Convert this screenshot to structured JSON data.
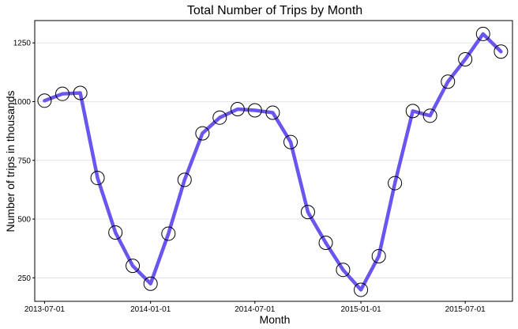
{
  "chart_data": {
    "type": "line",
    "title": "Total Number of Trips by Month",
    "xlabel": "Month",
    "ylabel": "Number of trips in thousands",
    "x": [
      "2013-07-01",
      "2013-08-01",
      "2013-09-01",
      "2013-10-01",
      "2013-11-01",
      "2013-12-01",
      "2014-01-01",
      "2014-02-01",
      "2014-03-01",
      "2014-04-01",
      "2014-05-01",
      "2014-06-01",
      "2014-07-01",
      "2014-08-01",
      "2014-09-01",
      "2014-10-01",
      "2014-11-01",
      "2014-12-01",
      "2015-01-01",
      "2015-02-01",
      "2015-03-01",
      "2015-04-01",
      "2015-05-01",
      "2015-06-01",
      "2015-07-01",
      "2015-08-01",
      "2015-09-01"
    ],
    "series": [
      {
        "values": [
          1004,
          1033,
          1037,
          675,
          443,
          301,
          225,
          438,
          667,
          865,
          932,
          968,
          963,
          953,
          828,
          530,
          399,
          284,
          199,
          342,
          653,
          960,
          940,
          1085,
          1180,
          1288,
          1213
        ]
      }
    ],
    "line_color": "#6955f0",
    "marker": "open-circle",
    "x_ticks": [
      "2013-07-01",
      "2014-01-01",
      "2014-07-01",
      "2015-01-01",
      "2015-07-01"
    ],
    "y_ticks": [
      250,
      500,
      750,
      1000,
      1250
    ],
    "xlim": [
      "2013-06-14",
      "2015-09-21"
    ],
    "ylim": [
      150,
      1345
    ],
    "grid": "horizontal-major"
  }
}
